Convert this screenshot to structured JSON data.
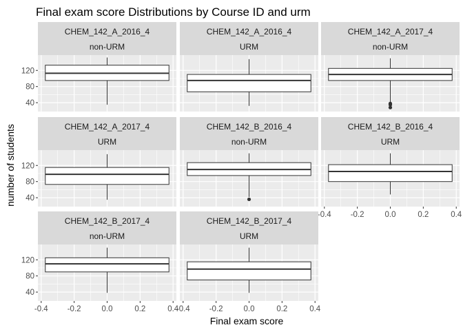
{
  "chart_data": {
    "type": "boxplot",
    "title": "Final exam score Distributions by Course ID and urm",
    "xlabel": "Final exam score",
    "ylabel": "number of students",
    "x_ticks": [
      "-0.4",
      "-0.2",
      "0.0",
      "0.2",
      "0.4"
    ],
    "y_ticks": [
      "40",
      "80",
      "120"
    ],
    "xlim": [
      -0.42,
      0.42
    ],
    "ylim": [
      18,
      158
    ],
    "colors": {
      "panel_bg": "#ebebeb",
      "strip_bg": "#d9d9d9",
      "grid": "#ffffff",
      "box_line": "#333333",
      "text": "#1a1a1a",
      "tick_text": "#4d4d4d"
    },
    "panels": [
      {
        "course": "CHEM_142_A_2016_4",
        "group": "non-URM",
        "box": {
          "whisker_low": 35,
          "q1": 95,
          "median": 113,
          "q3": 133,
          "whisker_high": 152,
          "x_min": -0.375,
          "x_max": 0.375
        },
        "outliers": []
      },
      {
        "course": "CHEM_142_A_2016_4",
        "group": "URM",
        "box": {
          "whisker_low": 32,
          "q1": 67,
          "median": 95,
          "q3": 110,
          "whisker_high": 148,
          "x_min": -0.375,
          "x_max": 0.375
        },
        "outliers": []
      },
      {
        "course": "CHEM_142_A_2017_4",
        "group": "non-URM",
        "box": {
          "whisker_low": 42,
          "q1": 95,
          "median": 110,
          "q3": 125,
          "whisker_high": 150,
          "x_min": -0.375,
          "x_max": 0.375
        },
        "outliers": [
          38,
          35,
          28
        ]
      },
      {
        "course": "CHEM_142_A_2017_4",
        "group": "URM",
        "box": {
          "whisker_low": 35,
          "q1": 73,
          "median": 98,
          "q3": 115,
          "whisker_high": 148,
          "x_min": -0.375,
          "x_max": 0.375
        },
        "outliers": []
      },
      {
        "course": "CHEM_142_B_2016_4",
        "group": "non-URM",
        "box": {
          "whisker_low": 42,
          "q1": 95,
          "median": 110,
          "q3": 127,
          "whisker_high": 150,
          "x_min": -0.375,
          "x_max": 0.375
        },
        "outliers": [
          36
        ]
      },
      {
        "course": "CHEM_142_B_2016_4",
        "group": "URM",
        "box": {
          "whisker_low": 48,
          "q1": 80,
          "median": 105,
          "q3": 122,
          "whisker_high": 150,
          "x_min": -0.375,
          "x_max": 0.375
        },
        "outliers": []
      },
      {
        "course": "CHEM_142_B_2017_4",
        "group": "non-URM",
        "box": {
          "whisker_low": 38,
          "q1": 90,
          "median": 110,
          "q3": 125,
          "whisker_high": 150,
          "x_min": -0.375,
          "x_max": 0.375
        },
        "outliers": []
      },
      {
        "course": "CHEM_142_B_2017_4",
        "group": "URM",
        "box": {
          "whisker_low": 38,
          "q1": 70,
          "median": 97,
          "q3": 115,
          "whisker_high": 150,
          "x_min": -0.375,
          "x_max": 0.375
        },
        "outliers": []
      }
    ]
  }
}
